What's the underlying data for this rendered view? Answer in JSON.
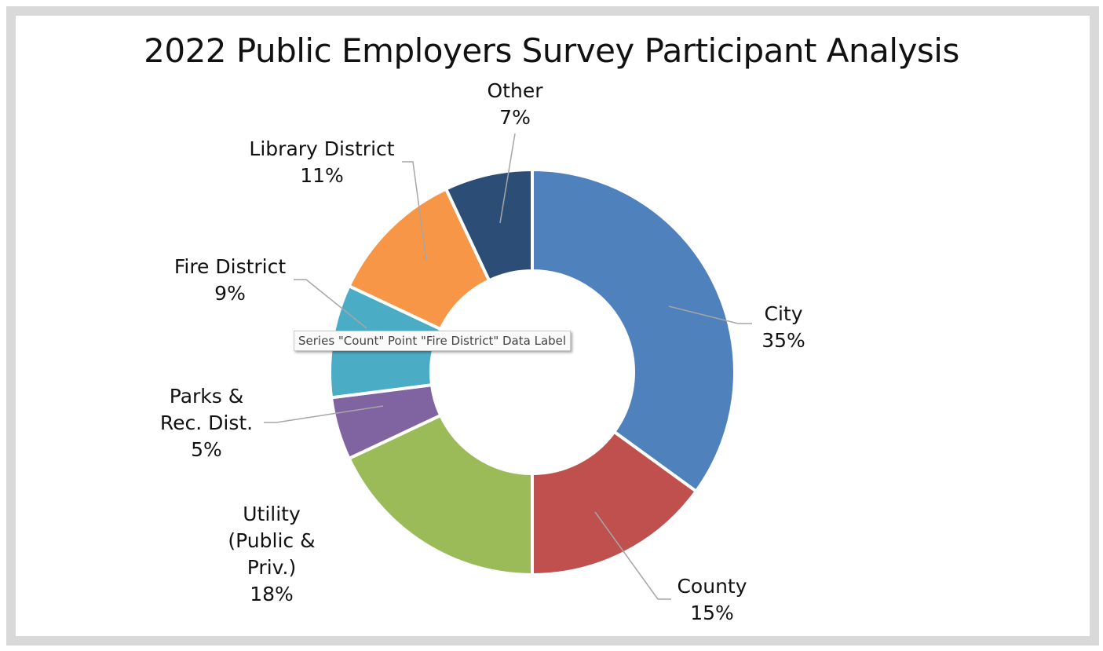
{
  "chart_data": {
    "type": "pie",
    "variant": "donut",
    "title": "2022 Public Employers Survey Participant Analysis",
    "series_name": "Count",
    "start_angle": "12 o'clock, clockwise",
    "slices": [
      {
        "label": "City",
        "label_lines": [
          "City"
        ],
        "percent": 35,
        "percent_label": "35%",
        "color": "#4f81bd"
      },
      {
        "label": "County",
        "label_lines": [
          "County"
        ],
        "percent": 15,
        "percent_label": "15%",
        "color": "#c0504d"
      },
      {
        "label": "Utility (Public & Priv.)",
        "label_lines": [
          "Utility",
          "(Public &",
          "Priv.)"
        ],
        "percent": 18,
        "percent_label": "18%",
        "color": "#9bbb59"
      },
      {
        "label": "Parks & Rec. Dist.",
        "label_lines": [
          "Parks &",
          "Rec. Dist."
        ],
        "percent": 5,
        "percent_label": "5%",
        "color": "#8064a2"
      },
      {
        "label": "Fire District",
        "label_lines": [
          "Fire District"
        ],
        "percent": 9,
        "percent_label": "9%",
        "color": "#4bacc6"
      },
      {
        "label": "Library District",
        "label_lines": [
          "Library District"
        ],
        "percent": 11,
        "percent_label": "11%",
        "color": "#f79646"
      },
      {
        "label": "Other",
        "label_lines": [
          "Other"
        ],
        "percent": 7,
        "percent_label": "7%",
        "color": "#2c4d75"
      }
    ],
    "legend": "none (data labels with leader lines)"
  },
  "tooltip": "Series \"Count\" Point \"Fire District\" Data Label"
}
